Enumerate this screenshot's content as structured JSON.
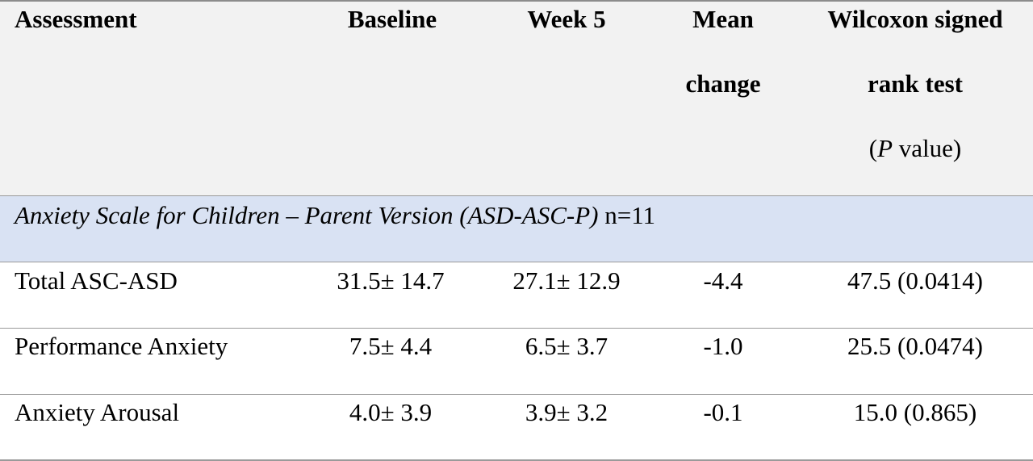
{
  "header": {
    "assessment": "Assessment",
    "baseline": "Baseline",
    "week5": "Week 5",
    "mean_change_line1": "Mean",
    "mean_change_line2": "change",
    "wilcoxon_line1": "Wilcoxon signed",
    "wilcoxon_line2": "rank test",
    "wilcoxon_line3_p": "P",
    "wilcoxon_line3_rest": " value)",
    "wilcoxon_line3_open": "("
  },
  "section": {
    "title_italic": "Anxiety Scale for Children – Parent Version (ASD-ASC-P)",
    "title_n": " n=11"
  },
  "rows": [
    {
      "assessment": "Total ASC-ASD",
      "baseline": "31.5± 14.7",
      "week5": "27.1± 12.9",
      "mean_change": "-4.4",
      "wilcoxon": "47.5 (0.0414)"
    },
    {
      "assessment": "Performance Anxiety",
      "baseline": "7.5± 4.4",
      "week5": "6.5± 3.7",
      "mean_change": "-1.0",
      "wilcoxon": "25.5 (0.0474)"
    },
    {
      "assessment": "Anxiety Arousal",
      "baseline": "4.0± 3.9",
      "week5": "3.9± 3.2",
      "mean_change": "-0.1",
      "wilcoxon": "15.0 (0.865)"
    }
  ]
}
